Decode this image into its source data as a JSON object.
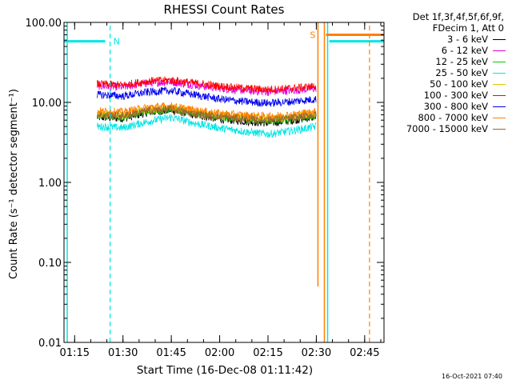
{
  "chart_data": {
    "type": "line",
    "title": "RHESSI Count Rates",
    "xlabel": "Start Time (16-Dec-08 01:11:42)",
    "ylabel": "Count Rate (s⁻¹ detector segment⁻¹)",
    "yscale": "log",
    "ylim": [
      0.01,
      100
    ],
    "xlim": [
      "01:11:42",
      "02:51:00"
    ],
    "x_ticks": [
      "01:15",
      "01:30",
      "01:45",
      "02:00",
      "02:15",
      "02:30",
      "02:45"
    ],
    "y_ticks": [
      "0.01",
      "0.10",
      "1.00",
      "10.00",
      "100.00"
    ],
    "legend_header": [
      "Det 1f,3f,4f,5f,6f,9f,",
      "FDecim 1, Att 0"
    ],
    "legend_position": "right, outside plot",
    "grid": false,
    "series": [
      {
        "name": "3 - 6 keV",
        "color": "#000000",
        "x": [
          "01:22",
          "01:30",
          "01:38",
          "01:45",
          "01:52",
          "02:00",
          "02:08",
          "02:15",
          "02:22",
          "02:30"
        ],
        "values": [
          6.5,
          6.3,
          7.5,
          8.0,
          7.0,
          6.2,
          5.8,
          5.5,
          5.9,
          6.6
        ]
      },
      {
        "name": "6 - 12 keV",
        "color": "#dd00dd",
        "x": [
          "01:22",
          "01:30",
          "01:38",
          "01:45",
          "01:52",
          "02:00",
          "02:08",
          "02:15",
          "02:22",
          "02:30"
        ],
        "values": [
          16,
          15.5,
          17.5,
          18,
          16.5,
          15,
          14,
          13.5,
          14,
          15
        ]
      },
      {
        "name": "12 - 25 keV",
        "color": "#00cc00",
        "x": [
          "01:22",
          "01:30",
          "01:38",
          "01:45",
          "01:52",
          "02:00",
          "02:08",
          "02:15",
          "02:22",
          "02:30"
        ],
        "values": [
          6.8,
          6.6,
          7.8,
          8.3,
          7.3,
          6.5,
          6.1,
          5.9,
          6.2,
          6.9
        ]
      },
      {
        "name": "25 - 50 keV",
        "color": "#00e5e5",
        "x": [
          "01:22",
          "01:30",
          "01:38",
          "01:45",
          "01:52",
          "02:00",
          "02:08",
          "02:15",
          "02:22",
          "02:30"
        ],
        "values": [
          5.0,
          4.8,
          5.8,
          6.5,
          5.5,
          4.8,
          4.3,
          4.0,
          4.4,
          5.0
        ]
      },
      {
        "name": "50 - 100 keV",
        "color": "#e5c800",
        "x": [
          "01:22",
          "01:30",
          "01:38",
          "01:45",
          "01:52",
          "02:00",
          "02:08",
          "02:15",
          "02:22",
          "02:30"
        ],
        "values": [
          7.2,
          7.0,
          8.2,
          8.6,
          7.6,
          6.9,
          6.5,
          6.3,
          6.6,
          7.3
        ]
      },
      {
        "name": "100 - 300 keV",
        "color": "#ff0000",
        "x": [
          "01:22",
          "01:30",
          "01:38",
          "01:45",
          "01:52",
          "02:00",
          "02:08",
          "02:15",
          "02:22",
          "02:30"
        ],
        "values": [
          17,
          16.5,
          18.5,
          19,
          17.5,
          16,
          15,
          14.5,
          15,
          16
        ]
      },
      {
        "name": "300 - 800 keV",
        "color": "#0000ee",
        "x": [
          "01:22",
          "01:30",
          "01:38",
          "01:45",
          "01:52",
          "02:00",
          "02:08",
          "02:15",
          "02:22",
          "02:30"
        ],
        "values": [
          12.5,
          12,
          13.5,
          14,
          12.5,
          11,
          10.2,
          9.8,
          10.2,
          11
        ]
      },
      {
        "name": "800 - 7000 keV",
        "color": "#ff7f00",
        "x": [
          "01:22",
          "01:30",
          "01:38",
          "01:45",
          "01:52",
          "02:00",
          "02:08",
          "02:15",
          "02:22",
          "02:30"
        ],
        "values": [
          7.8,
          7.6,
          8.7,
          9.0,
          8.0,
          7.3,
          6.9,
          6.7,
          7.0,
          7.7
        ]
      },
      {
        "name": "7000 - 15000 keV",
        "color": "#996633",
        "x": [
          "01:22",
          "01:30",
          "01:38",
          "01:45",
          "01:52",
          "02:00",
          "02:08",
          "02:15",
          "02:22",
          "02:30"
        ],
        "values": [
          7.0,
          6.8,
          7.9,
          8.2,
          7.2,
          6.6,
          6.2,
          6.0,
          6.3,
          7.0
        ]
      }
    ],
    "annotations": [
      {
        "label": "N",
        "color": "#00e5e5"
      },
      {
        "label": "S",
        "color": "#ff7f00"
      }
    ]
  },
  "footer_timestamp": "16-Oct-2021 07:40"
}
